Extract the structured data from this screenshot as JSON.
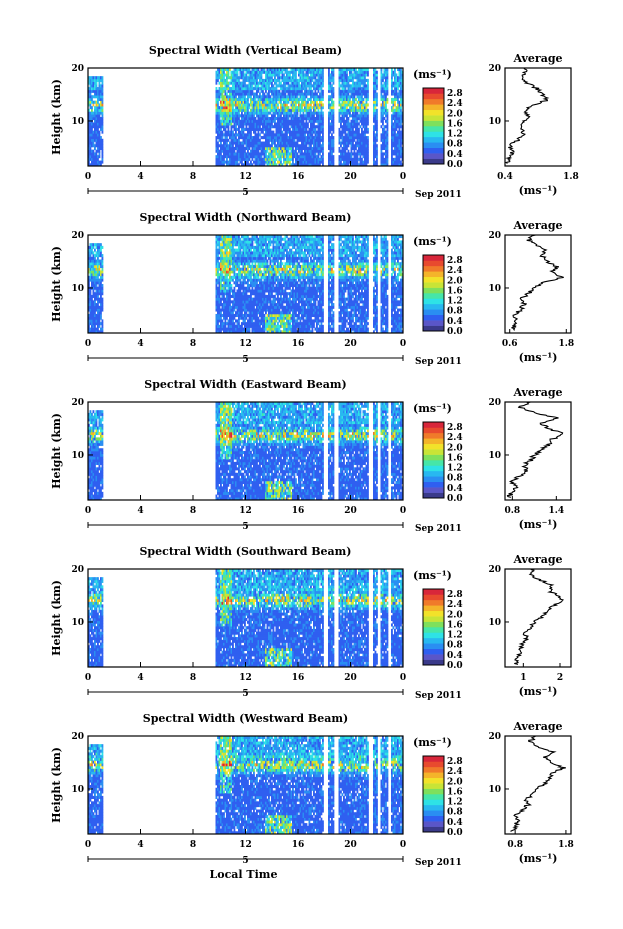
{
  "chart_data": {
    "type": "heatmap",
    "x_axis": {
      "label": "Local Time",
      "ticks": [
        "0",
        "4",
        "8",
        "12",
        "16",
        "20",
        "0"
      ],
      "range_hours": [
        0,
        24
      ],
      "day_marker": "5",
      "date_label": "Sep 2011"
    },
    "y_axis": {
      "label": "Height (km)",
      "ticks": [
        10,
        20
      ],
      "range": [
        1.5,
        20
      ]
    },
    "colorbar": {
      "unit": "(ms⁻¹)",
      "ticks": [
        "0.0",
        "0.4",
        "0.8",
        "1.2",
        "1.6",
        "2.0",
        "2.4",
        "2.8"
      ],
      "range": [
        0,
        3.0
      ],
      "colors": [
        "#3a3a8a",
        "#5a56c8",
        "#2f5ff0",
        "#2a8ef2",
        "#28b8f0",
        "#2ee2e6",
        "#46e6a8",
        "#7ee05c",
        "#c8e436",
        "#f2e22a",
        "#f4b42a",
        "#f07a2a",
        "#e84a2e",
        "#d8263a"
      ]
    },
    "data_gaps_hours": [
      [
        1.2,
        9.7
      ],
      [
        18.0,
        18.3
      ],
      [
        18.8,
        19.1
      ],
      [
        21.4,
        21.7
      ],
      [
        22.1,
        22.3
      ],
      [
        22.8,
        23.1
      ]
    ],
    "panels": [
      {
        "title": "Spectral Width (Vertical Beam)",
        "average": {
          "title": "Average",
          "xlabel": "(ms⁻¹)",
          "xticks": [
            "0.4",
            "1.8"
          ],
          "xrange": [
            0.4,
            1.8
          ],
          "profile": [
            [
              2,
              0.45
            ],
            [
              3,
              0.5
            ],
            [
              4,
              0.55
            ],
            [
              5,
              0.5
            ],
            [
              6,
              0.6
            ],
            [
              7,
              0.75
            ],
            [
              8,
              0.8
            ],
            [
              9,
              0.7
            ],
            [
              10,
              0.8
            ],
            [
              11,
              0.9
            ],
            [
              12,
              0.85
            ],
            [
              13,
              1.0
            ],
            [
              14,
              1.3
            ],
            [
              15,
              1.2
            ],
            [
              16,
              1.1
            ],
            [
              17,
              0.9
            ],
            [
              18,
              0.8
            ],
            [
              19,
              0.8
            ],
            [
              20,
              0.85
            ]
          ]
        }
      },
      {
        "title": "Spectral Width (Northward Beam)",
        "average": {
          "title": "Average",
          "xlabel": "(ms⁻¹)",
          "xticks": [
            "0.6",
            "1.8"
          ],
          "xrange": [
            0.5,
            1.9
          ],
          "profile": [
            [
              2,
              0.65
            ],
            [
              3,
              0.7
            ],
            [
              4,
              0.75
            ],
            [
              5,
              0.7
            ],
            [
              6,
              0.85
            ],
            [
              7,
              0.9
            ],
            [
              8,
              0.85
            ],
            [
              9,
              1.0
            ],
            [
              10,
              1.15
            ],
            [
              11,
              1.3
            ],
            [
              12,
              1.7
            ],
            [
              13,
              1.5
            ],
            [
              14,
              1.6
            ],
            [
              15,
              1.4
            ],
            [
              16,
              1.3
            ],
            [
              17,
              1.35
            ],
            [
              18,
              1.2
            ],
            [
              19,
              1.0
            ],
            [
              20,
              1.1
            ]
          ]
        }
      },
      {
        "title": "Spectral Width (Eastward Beam)",
        "average": {
          "title": "Average",
          "xlabel": "(ms⁻¹)",
          "xticks": [
            "0.8",
            "1.4"
          ],
          "xrange": [
            0.7,
            1.6
          ],
          "profile": [
            [
              2,
              0.75
            ],
            [
              3,
              0.8
            ],
            [
              4,
              0.85
            ],
            [
              5,
              0.8
            ],
            [
              6,
              0.9
            ],
            [
              7,
              1.0
            ],
            [
              8,
              0.95
            ],
            [
              9,
              1.05
            ],
            [
              10,
              1.1
            ],
            [
              11,
              1.2
            ],
            [
              12,
              1.3
            ],
            [
              13,
              1.35
            ],
            [
              14,
              1.5
            ],
            [
              15,
              1.3
            ],
            [
              16,
              1.2
            ],
            [
              17,
              1.4
            ],
            [
              18,
              1.1
            ],
            [
              19,
              0.9
            ],
            [
              20,
              1.05
            ]
          ]
        }
      },
      {
        "title": "Spectral Width (Southward Beam)",
        "average": {
          "title": "Average",
          "xlabel": "(ms⁻¹)",
          "xticks": [
            "1",
            "2"
          ],
          "xrange": [
            0.5,
            2.3
          ],
          "profile": [
            [
              2,
              0.8
            ],
            [
              3,
              0.85
            ],
            [
              4,
              0.9
            ],
            [
              5,
              0.9
            ],
            [
              6,
              1.0
            ],
            [
              7,
              1.1
            ],
            [
              8,
              1.05
            ],
            [
              9,
              1.2
            ],
            [
              10,
              1.3
            ],
            [
              11,
              1.5
            ],
            [
              12,
              1.6
            ],
            [
              13,
              1.8
            ],
            [
              14,
              2.1
            ],
            [
              15,
              1.9
            ],
            [
              16,
              1.7
            ],
            [
              17,
              1.8
            ],
            [
              18,
              1.4
            ],
            [
              19,
              1.2
            ],
            [
              20,
              1.3
            ]
          ]
        }
      },
      {
        "title": "Spectral Width (Westward Beam)",
        "average": {
          "title": "Average",
          "xlabel": "(ms⁻¹)",
          "xticks": [
            "0.8",
            "1.8"
          ],
          "xrange": [
            0.6,
            1.9
          ],
          "profile": [
            [
              2,
              0.75
            ],
            [
              3,
              0.8
            ],
            [
              4,
              0.85
            ],
            [
              5,
              0.8
            ],
            [
              6,
              0.95
            ],
            [
              7,
              1.05
            ],
            [
              8,
              1.0
            ],
            [
              9,
              1.15
            ],
            [
              10,
              1.2
            ],
            [
              11,
              1.4
            ],
            [
              12,
              1.5
            ],
            [
              13,
              1.55
            ],
            [
              14,
              1.75
            ],
            [
              15,
              1.5
            ],
            [
              16,
              1.4
            ],
            [
              17,
              1.55
            ],
            [
              18,
              1.25
            ],
            [
              19,
              1.1
            ],
            [
              20,
              1.2
            ]
          ]
        }
      }
    ]
  }
}
